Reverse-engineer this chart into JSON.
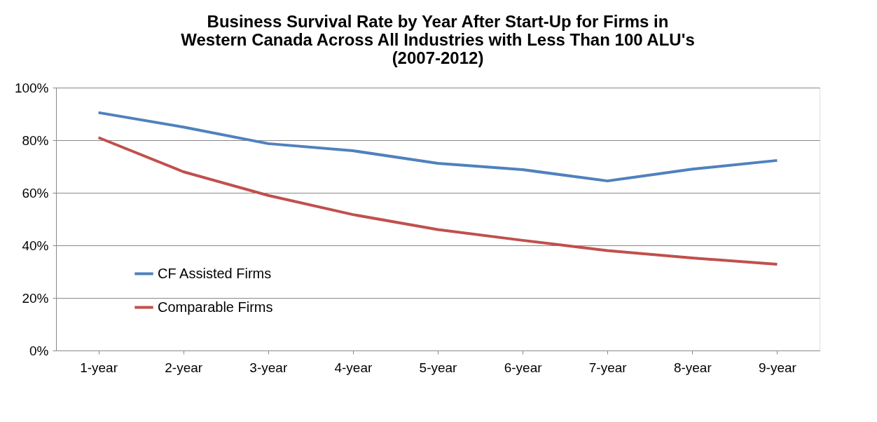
{
  "chart_data": {
    "type": "line",
    "title": "Business Survival Rate by Year After Start-Up for Firms in\nWestern Canada Across All Industries with Less Than 100 ALU's\n(2007-2012)",
    "categories": [
      "1-year",
      "2-year",
      "3-year",
      "4-year",
      "5-year",
      "6-year",
      "7-year",
      "8-year",
      "9-year"
    ],
    "series": [
      {
        "name": "CF Assisted Firms",
        "color": "#4f81bd",
        "values": [
          90.5,
          85,
          78.7,
          76,
          71.2,
          68.8,
          64.5,
          69,
          72.3
        ]
      },
      {
        "name": "Comparable Firms",
        "color": "#c0504d",
        "values": [
          81,
          68,
          59,
          51.7,
          46,
          41.9,
          38,
          35.2,
          32.8
        ]
      }
    ],
    "ylim": [
      0,
      100
    ],
    "yticks": [
      {
        "value": 0,
        "label": "0%"
      },
      {
        "value": 20,
        "label": "20%"
      },
      {
        "value": 40,
        "label": "40%"
      },
      {
        "value": 60,
        "label": "60%"
      },
      {
        "value": 80,
        "label": "80%"
      },
      {
        "value": 100,
        "label": "100%"
      }
    ],
    "grid": "y",
    "legend": "bottom left",
    "marker": "none",
    "line_style": "solid"
  }
}
